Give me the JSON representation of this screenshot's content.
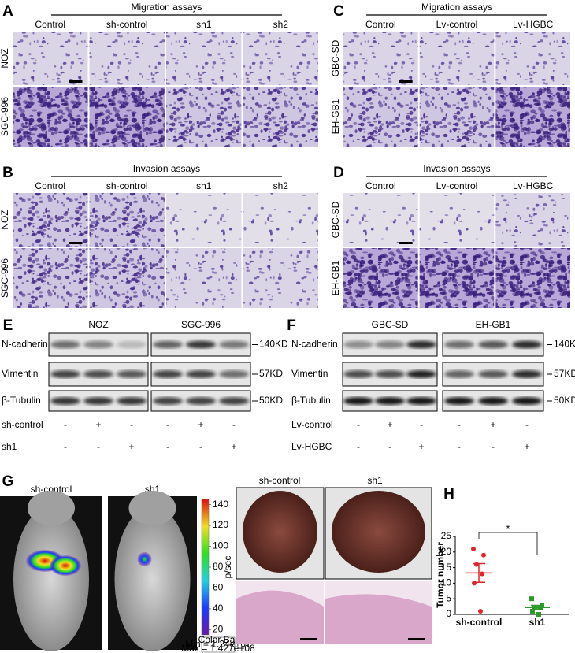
{
  "panel_a": {
    "letter": "A",
    "title": "Migration assays",
    "columns": [
      "Control",
      "sh-control",
      "sh1",
      "sh2"
    ],
    "rows": [
      "NOZ",
      "SGC-996"
    ]
  },
  "panel_b": {
    "letter": "B",
    "title": "Invasion assays",
    "columns": [
      "Control",
      "sh-control",
      "sh1",
      "sh2"
    ],
    "rows": [
      "NOZ",
      "SGC-996"
    ]
  },
  "panel_c": {
    "letter": "C",
    "title": "Migration assays",
    "columns": [
      "Control",
      "Lv-control",
      "Lv-HGBC"
    ],
    "rows": [
      "GBC-SD",
      "EH-GB1"
    ]
  },
  "panel_d": {
    "letter": "D",
    "title": "Invasion assays",
    "columns": [
      "Control",
      "Lv-control",
      "Lv-HGBC"
    ],
    "rows": [
      "GBC-SD",
      "EH-GB1"
    ]
  },
  "panel_e": {
    "letter": "E",
    "groups": [
      "NOZ",
      "SGC-996"
    ],
    "proteins": [
      "N-cadherin",
      "Vimentin",
      "β-Tubulin"
    ],
    "sizes": [
      "140KD",
      "57KD",
      "50KD"
    ],
    "conditions": [
      {
        "name": "sh-control",
        "signs": [
          "-",
          "+",
          "-",
          "-",
          "+",
          "-"
        ]
      },
      {
        "name": "sh1",
        "signs": [
          "-",
          "-",
          "+",
          "-",
          "-",
          "+"
        ]
      }
    ]
  },
  "panel_f": {
    "letter": "F",
    "groups": [
      "GBC-SD",
      "EH-GB1"
    ],
    "proteins": [
      "N-cadherin",
      "Vimentin",
      "β-Tubulin"
    ],
    "sizes": [
      "140KD",
      "57KD",
      "50KD"
    ],
    "conditions": [
      {
        "name": "Lv-control",
        "signs": [
          "-",
          "+",
          "-",
          "-",
          "+",
          "-"
        ]
      },
      {
        "name": "Lv-HGBC",
        "signs": [
          "-",
          "-",
          "+",
          "-",
          "-",
          "+"
        ]
      }
    ]
  },
  "panel_g": {
    "letter": "G",
    "imaging_labels": [
      "sh-control",
      "sh1"
    ],
    "liver_labels": [
      "sh-control",
      "sh1"
    ],
    "colorbar": {
      "ticks": [
        140,
        120,
        100,
        80,
        60,
        40,
        20
      ],
      "lim": [
        15,
        145
      ],
      "unit": "p/sec",
      "note": [
        "Color Bar",
        "Min = 1.24e+07",
        "Max = 1.427e+08"
      ]
    }
  },
  "chart_data": {
    "type": "strip",
    "panel": "H",
    "y_label": "Tumor number",
    "categories": [
      "sh-control",
      "sh1"
    ],
    "groups": [
      {
        "color": "#e0262a",
        "values": [
          21,
          19,
          16,
          13,
          10,
          1
        ],
        "mean": 13.3,
        "sem": 3.0
      },
      {
        "color": "#2a9a2a",
        "values": [
          5,
          3,
          2,
          2,
          1,
          0
        ],
        "mean": 2.2,
        "sem": 0.7
      }
    ],
    "annotation": "*",
    "ylim": [
      0,
      25
    ],
    "yticks": [
      0,
      5,
      10,
      15,
      20,
      25
    ]
  }
}
